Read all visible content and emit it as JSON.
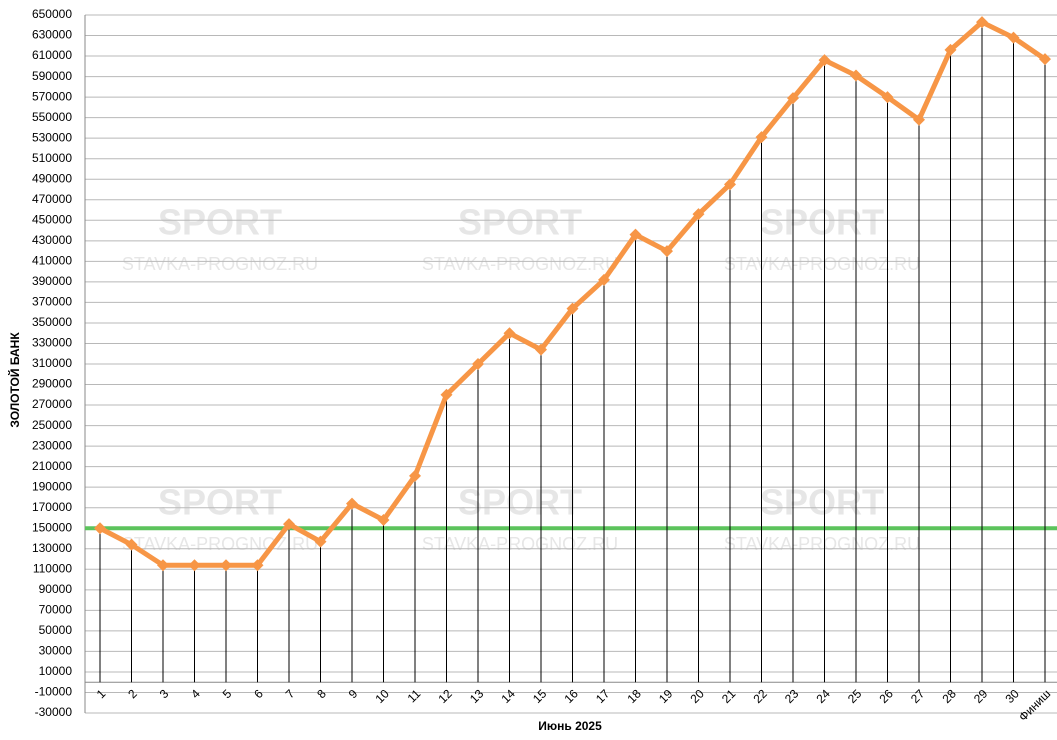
{
  "chart_data": {
    "type": "line",
    "x_label": "Июнь 2025",
    "y_label": "ЗОЛОТОЙ БАНК",
    "watermark": [
      "SPORT",
      "STAVKA-PROGNOZ.RU"
    ],
    "categories": [
      "1",
      "2",
      "3",
      "4",
      "5",
      "6",
      "7",
      "8",
      "9",
      "10",
      "11",
      "12",
      "13",
      "14",
      "15",
      "16",
      "17",
      "18",
      "19",
      "20",
      "21",
      "22",
      "23",
      "24",
      "25",
      "26",
      "27",
      "28",
      "29",
      "30",
      "Финиш"
    ],
    "series": [
      {
        "color": "#f79646",
        "values": [
          150000,
          134000,
          114000,
          114000,
          114000,
          114000,
          154000,
          137000,
          174000,
          158000,
          201000,
          280000,
          310000,
          340000,
          324000,
          364000,
          392000,
          436000,
          420000,
          456000,
          485000,
          531000,
          569000,
          606000,
          591000,
          570000,
          548000,
          616000,
          643000,
          628000,
          607000
        ]
      }
    ],
    "reference_line": {
      "value": 150000,
      "color": "#5cc35c"
    },
    "ylim": [
      -30000,
      650000
    ],
    "yticks": [
      -30000,
      -10000,
      10000,
      30000,
      50000,
      70000,
      90000,
      110000,
      130000,
      150000,
      170000,
      190000,
      210000,
      230000,
      250000,
      270000,
      290000,
      310000,
      330000,
      350000,
      370000,
      390000,
      410000,
      430000,
      450000,
      470000,
      490000,
      510000,
      530000,
      550000,
      570000,
      590000,
      610000,
      630000,
      650000
    ],
    "grid": true
  }
}
